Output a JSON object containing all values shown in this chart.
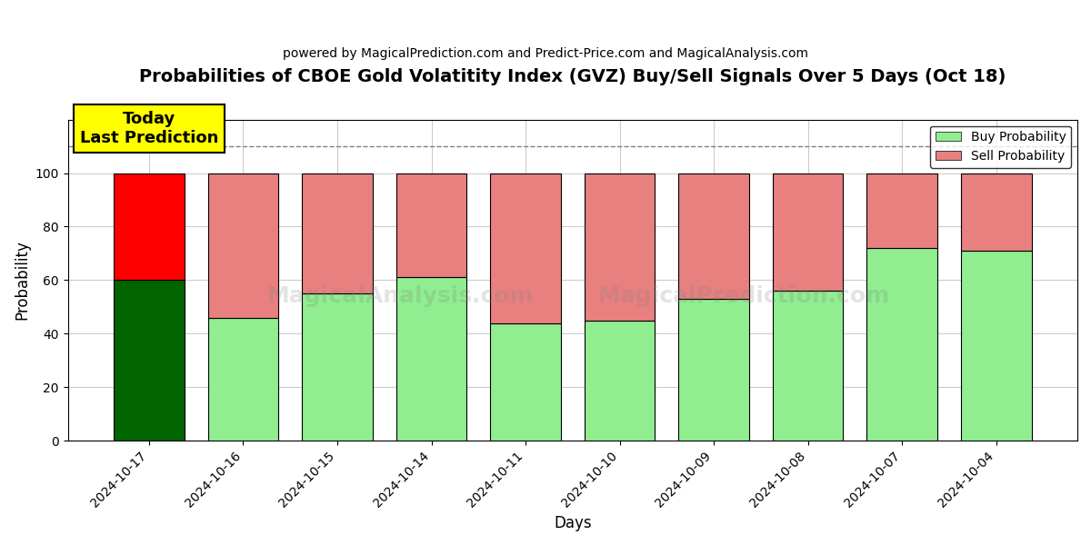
{
  "title": "Probabilities of CBOE Gold Volatitity Index (GVZ) Buy/Sell Signals Over 5 Days (Oct 18)",
  "subtitle": "powered by MagicalPrediction.com and Predict-Price.com and MagicalAnalysis.com",
  "xlabel": "Days",
  "ylabel": "Probability",
  "dates": [
    "2024-10-17",
    "2024-10-16",
    "2024-10-15",
    "2024-10-14",
    "2024-10-11",
    "2024-10-10",
    "2024-10-09",
    "2024-10-08",
    "2024-10-07",
    "2024-10-04"
  ],
  "buy_values": [
    60,
    46,
    55,
    61,
    44,
    45,
    53,
    56,
    72,
    71
  ],
  "sell_values": [
    40,
    54,
    45,
    39,
    56,
    55,
    47,
    44,
    28,
    29
  ],
  "buy_color_today": "#006400",
  "sell_color_today": "#ff0000",
  "buy_color_normal": "#90ee90",
  "sell_color_normal": "#e88080",
  "bar_edge_color": "#000000",
  "bar_width": 0.75,
  "ylim": [
    0,
    120
  ],
  "dashed_line_y": 110,
  "today_annotation_text": "Today\nLast Prediction",
  "today_annotation_bg": "#ffff00",
  "legend_buy_label": "Buy Probability",
  "legend_sell_label": "Sell Probability",
  "grid_color": "#cccccc",
  "background_color": "#ffffff",
  "yticks": [
    0,
    20,
    40,
    60,
    80,
    100
  ],
  "title_fontsize": 14,
  "subtitle_fontsize": 10,
  "annotation_fontsize": 13
}
